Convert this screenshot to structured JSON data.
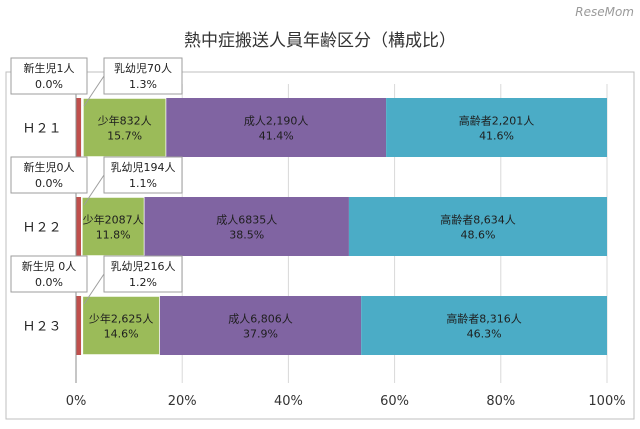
{
  "watermark": "ReseMom",
  "chart_data": {
    "type": "bar",
    "orientation": "horizontal",
    "stacked": true,
    "title": "熱中症搬送人員年齢区分（構成比）",
    "categories": [
      "Ｈ２１",
      "Ｈ２２",
      "Ｈ２３"
    ],
    "xlim": [
      0,
      100
    ],
    "x_ticks": [
      "0%",
      "20%",
      "40%",
      "60%",
      "80%",
      "100%"
    ],
    "grid": true,
    "series": [
      {
        "name": "新生児",
        "color": "#c0504d",
        "values": [
          0.0,
          0.0,
          0.0
        ],
        "labels": [
          [
            "新生児1人",
            "0.0%"
          ],
          [
            "新生児0人",
            "0.0%"
          ],
          [
            "新生児 0人",
            "0.0%"
          ]
        ]
      },
      {
        "name": "乳幼児",
        "color": "#f2f2f2",
        "values": [
          1.3,
          1.1,
          1.2
        ],
        "labels": [
          [
            "乳幼児70人",
            "1.3%"
          ],
          [
            "乳幼児194人",
            "1.1%"
          ],
          [
            "乳幼児216人",
            "1.2%"
          ]
        ]
      },
      {
        "name": "少年",
        "color": "#9bbb59",
        "values": [
          15.7,
          11.8,
          14.6
        ],
        "labels": [
          [
            "少年832人",
            "15.7%"
          ],
          [
            "少年2087人",
            "11.8%"
          ],
          [
            "少年2,625人",
            "14.6%"
          ]
        ]
      },
      {
        "name": "成人",
        "color": "#8064a2",
        "values": [
          41.4,
          38.5,
          37.9
        ],
        "labels": [
          [
            "成人2,190人",
            "41.4%"
          ],
          [
            "成人6835人",
            "38.5%"
          ],
          [
            "成人6,806人",
            "37.9%"
          ]
        ]
      },
      {
        "name": "高齢者",
        "color": "#4bacc6",
        "values": [
          41.6,
          48.6,
          46.3
        ],
        "labels": [
          [
            "高齢者2,201人",
            "41.6%"
          ],
          [
            "高齢者8,634人",
            "48.6%"
          ],
          [
            "高齢者8,316人",
            "46.3%"
          ]
        ]
      }
    ]
  }
}
